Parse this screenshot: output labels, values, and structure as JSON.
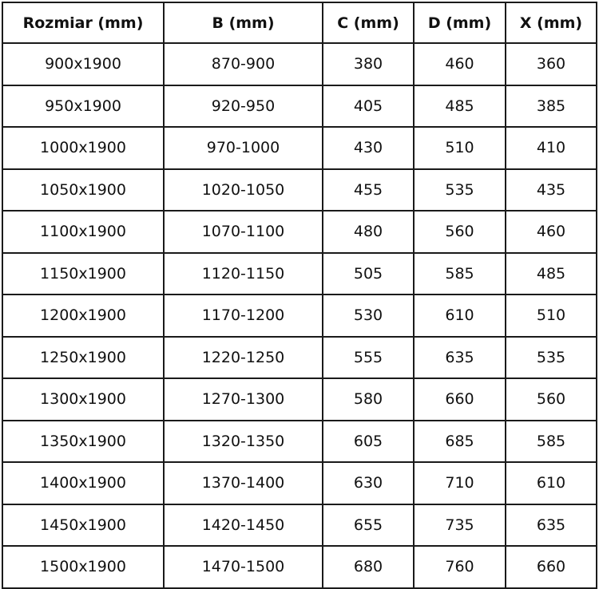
{
  "table": {
    "headers": [
      "Rozmiar (mm)",
      "B (mm)",
      "C (mm)",
      "D (mm)",
      "X (mm)"
    ],
    "rows": [
      [
        "900x1900",
        "870-900",
        "380",
        "460",
        "360"
      ],
      [
        "950x1900",
        "920-950",
        "405",
        "485",
        "385"
      ],
      [
        "1000x1900",
        "970-1000",
        "430",
        "510",
        "410"
      ],
      [
        "1050x1900",
        "1020-1050",
        "455",
        "535",
        "435"
      ],
      [
        "1100x1900",
        "1070-1100",
        "480",
        "560",
        "460"
      ],
      [
        "1150x1900",
        "1120-1150",
        "505",
        "585",
        "485"
      ],
      [
        "1200x1900",
        "1170-1200",
        "530",
        "610",
        "510"
      ],
      [
        "1250x1900",
        "1220-1250",
        "555",
        "635",
        "535"
      ],
      [
        "1300x1900",
        "1270-1300",
        "580",
        "660",
        "560"
      ],
      [
        "1350x1900",
        "1320-1350",
        "605",
        "685",
        "585"
      ],
      [
        "1400x1900",
        "1370-1400",
        "630",
        "710",
        "610"
      ],
      [
        "1450x1900",
        "1420-1450",
        "655",
        "735",
        "635"
      ],
      [
        "1500x1900",
        "1470-1500",
        "680",
        "760",
        "660"
      ]
    ]
  }
}
